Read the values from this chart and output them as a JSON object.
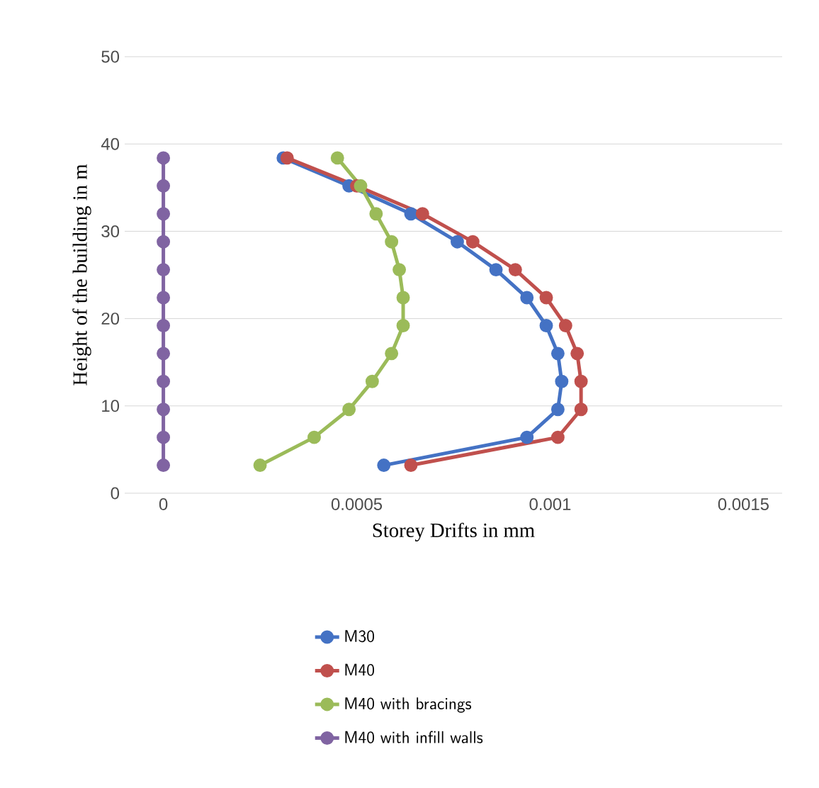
{
  "chart_data": {
    "type": "line",
    "xlabel": "Storey Drifts in mm",
    "ylabel": "Height of the building in  m",
    "series": [
      {
        "name": "M30",
        "color": "#4472c4",
        "values": [
          3.2,
          6.4,
          9.6,
          12.8,
          16,
          19.2,
          22.4,
          25.6,
          28.8,
          32,
          35.2,
          38.4
        ],
        "x": [
          0.00057,
          0.00094,
          0.00102,
          0.00103,
          0.00102,
          0.00099,
          0.00094,
          0.00086,
          0.00076,
          0.00064,
          0.00048,
          0.00031
        ]
      },
      {
        "name": "M40",
        "color": "#c0504d",
        "values": [
          3.2,
          6.4,
          9.6,
          12.8,
          16,
          19.2,
          22.4,
          25.6,
          28.8,
          32,
          35.2,
          38.4
        ],
        "x": [
          0.00064,
          0.00102,
          0.00108,
          0.00108,
          0.00107,
          0.00104,
          0.00099,
          0.00091,
          0.0008,
          0.00067,
          0.0005,
          0.00032
        ]
      },
      {
        "name": "M40 with bracings",
        "color": "#9bbb59",
        "values": [
          3.2,
          6.4,
          9.6,
          12.8,
          16,
          19.2,
          22.4,
          25.6,
          28.8,
          32,
          35.2,
          38.4
        ],
        "x": [
          0.00025,
          0.00039,
          0.00048,
          0.00054,
          0.00059,
          0.00062,
          0.00062,
          0.00061,
          0.00059,
          0.00055,
          0.00051,
          0.00045
        ]
      },
      {
        "name": "M40 with infill walls",
        "color": "#8064a2",
        "values": [
          3.2,
          6.4,
          9.6,
          12.8,
          16,
          19.2,
          22.4,
          25.6,
          28.8,
          32,
          35.2,
          38.4
        ],
        "x": [
          0,
          0,
          0,
          0,
          0,
          0,
          0,
          0,
          0,
          0,
          0,
          0
        ]
      }
    ],
    "xlim": [
      -0.0001,
      0.0016
    ],
    "xticks": [
      0,
      0.0005,
      0.001,
      0.0015
    ],
    "ylim": [
      0,
      50
    ],
    "yticks": [
      0,
      10,
      20,
      30,
      40,
      50
    ],
    "grid": "y",
    "legend": "bottom",
    "marker": "circle",
    "line_style": "solid"
  }
}
